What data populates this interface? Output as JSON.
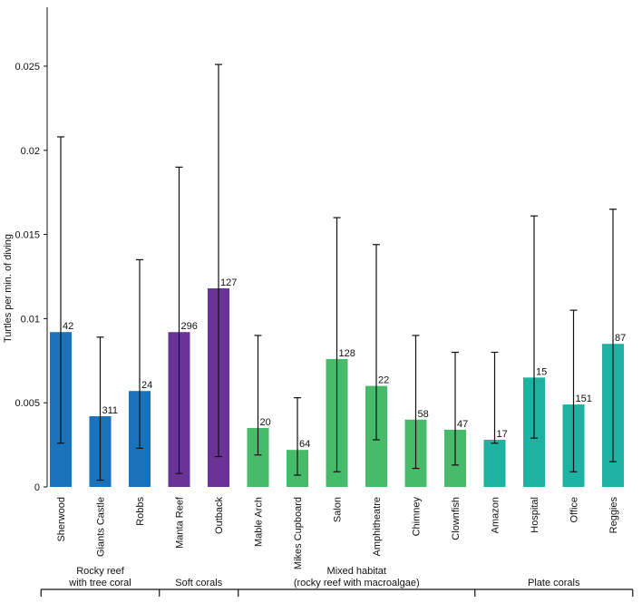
{
  "chart_data": {
    "type": "bar",
    "title": "",
    "xlabel": "",
    "ylabel": "Turtles per min. of diving",
    "ylim": [
      0,
      0.0285
    ],
    "yticks": [
      {
        "value": 0,
        "label": "0"
      },
      {
        "value": 0.005,
        "label": "0.005"
      },
      {
        "value": 0.01,
        "label": "0.01"
      },
      {
        "value": 0.015,
        "label": "0.015"
      },
      {
        "value": 0.02,
        "label": "0.02"
      },
      {
        "value": 0.025,
        "label": "0.025"
      }
    ],
    "grid": false,
    "categories": [
      "Sherwood",
      "Giants Castle",
      "Robbs",
      "Manta Reef",
      "Outback",
      "Mable Arch",
      "Mikes Cupboard",
      "Salon",
      "Amphitheatre",
      "Chimney",
      "Clownfish",
      "Amazon",
      "Hospital",
      "Office",
      "Reggies"
    ],
    "values": [
      0.0092,
      0.0042,
      0.0057,
      0.0092,
      0.0118,
      0.0035,
      0.0022,
      0.0076,
      0.006,
      0.004,
      0.0034,
      0.0028,
      0.0065,
      0.0049,
      0.0085
    ],
    "err_low": [
      0.0026,
      0.0004,
      0.0023,
      0.0008,
      0.0018,
      0.0019,
      0.0007,
      0.0009,
      0.0028,
      0.0011,
      0.0013,
      0.0026,
      0.0029,
      0.0009,
      0.0015
    ],
    "err_high": [
      0.0208,
      0.0089,
      0.0135,
      0.019,
      0.0251,
      0.009,
      0.0053,
      0.016,
      0.0144,
      0.009,
      0.008,
      0.008,
      0.0161,
      0.0105,
      0.0165
    ],
    "data_labels": [
      "42",
      "311",
      "24",
      "296",
      "127",
      "20",
      "64",
      "128",
      "22",
      "58",
      "47",
      "17",
      "15",
      "151",
      "87"
    ],
    "bar_groups": [
      0,
      0,
      0,
      1,
      1,
      2,
      2,
      2,
      2,
      2,
      2,
      3,
      3,
      3,
      3
    ],
    "groups": [
      {
        "name": "Rocky reef with tree coral",
        "line1": "Rocky reef",
        "line2": "with tree coral",
        "color": "#1a72bb"
      },
      {
        "name": "Soft corals",
        "line1": "Soft corals",
        "line2": "",
        "color": "#6a3396"
      },
      {
        "name": "Mixed habitat (rocky reef with macroalgae)",
        "line1": "Mixed habitat",
        "line2": "(rocky reef with macroalgae)",
        "color": "#46bb6a"
      },
      {
        "name": "Plate corals",
        "line1": "Plate corals",
        "line2": "",
        "color": "#1fb1a2"
      }
    ]
  }
}
